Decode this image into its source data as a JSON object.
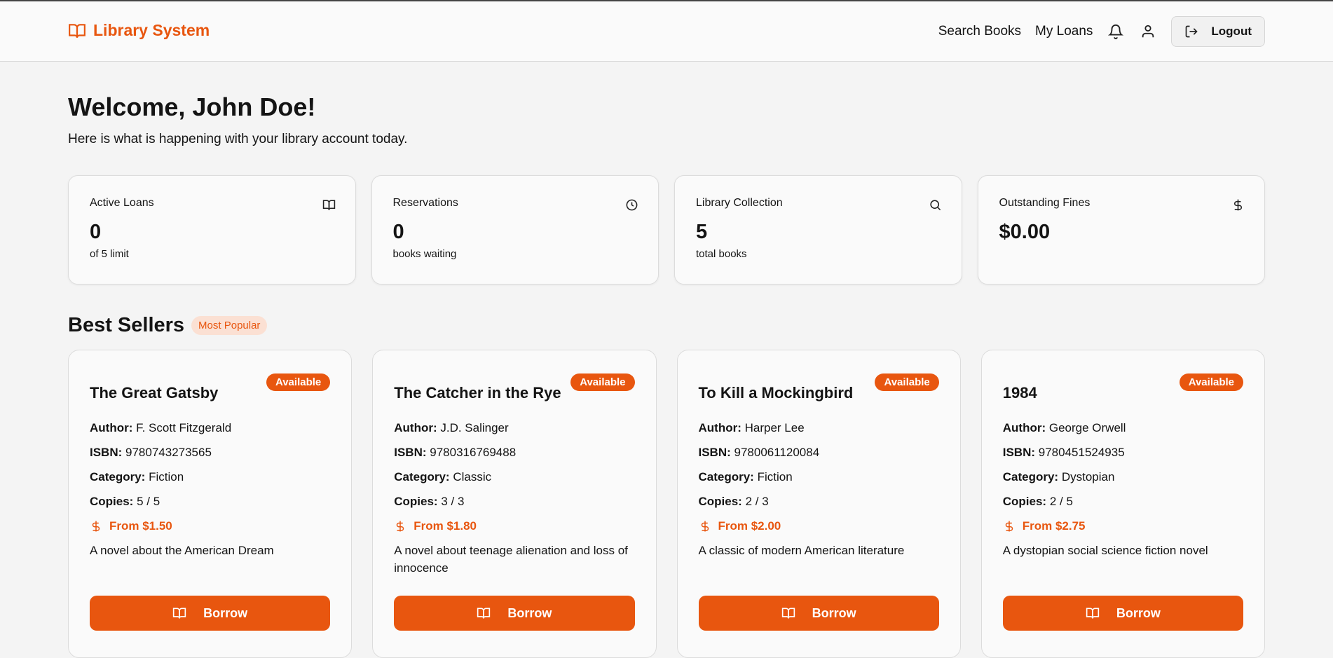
{
  "header": {
    "logo": "Library System",
    "nav": [
      "Search Books",
      "My Loans"
    ],
    "logout": "Logout"
  },
  "welcome": {
    "title": "Welcome, John Doe!",
    "subtitle": "Here is what is happening with your library account today."
  },
  "stats": [
    {
      "title": "Active Loans",
      "value": "0",
      "sub": "of 5 limit",
      "icon": "book-open-icon"
    },
    {
      "title": "Reservations",
      "value": "0",
      "sub": "books waiting",
      "icon": "clock-icon"
    },
    {
      "title": "Library Collection",
      "value": "5",
      "sub": "total books",
      "icon": "search-icon"
    },
    {
      "title": "Outstanding Fines",
      "value": "$0.00",
      "sub": "",
      "icon": "dollar-icon"
    }
  ],
  "best_sellers": {
    "title": "Best Sellers",
    "badge": "Most Popular"
  },
  "labels": {
    "author": "Author:",
    "isbn": "ISBN:",
    "category": "Category:",
    "copies": "Copies:",
    "borrow": "Borrow"
  },
  "accent": "#e8560f",
  "books": [
    {
      "title": "The Great Gatsby",
      "status": "Available",
      "author": "F. Scott Fitzgerald",
      "isbn": "9780743273565",
      "category": "Fiction",
      "copies": "5 / 5",
      "price": "From $1.50",
      "desc": "A novel about the American Dream"
    },
    {
      "title": "The Catcher in the Rye",
      "status": "Available",
      "author": "J.D. Salinger",
      "isbn": "9780316769488",
      "category": "Classic",
      "copies": "3 / 3",
      "price": "From $1.80",
      "desc": "A novel about teenage alienation and loss of innocence"
    },
    {
      "title": "To Kill a Mockingbird",
      "status": "Available",
      "author": "Harper Lee",
      "isbn": "9780061120084",
      "category": "Fiction",
      "copies": "2 / 3",
      "price": "From $2.00",
      "desc": "A classic of modern American literature"
    },
    {
      "title": "1984",
      "status": "Available",
      "author": "George Orwell",
      "isbn": "9780451524935",
      "category": "Dystopian",
      "copies": "2 / 5",
      "price": "From $2.75",
      "desc": "A dystopian social science fiction novel"
    }
  ]
}
